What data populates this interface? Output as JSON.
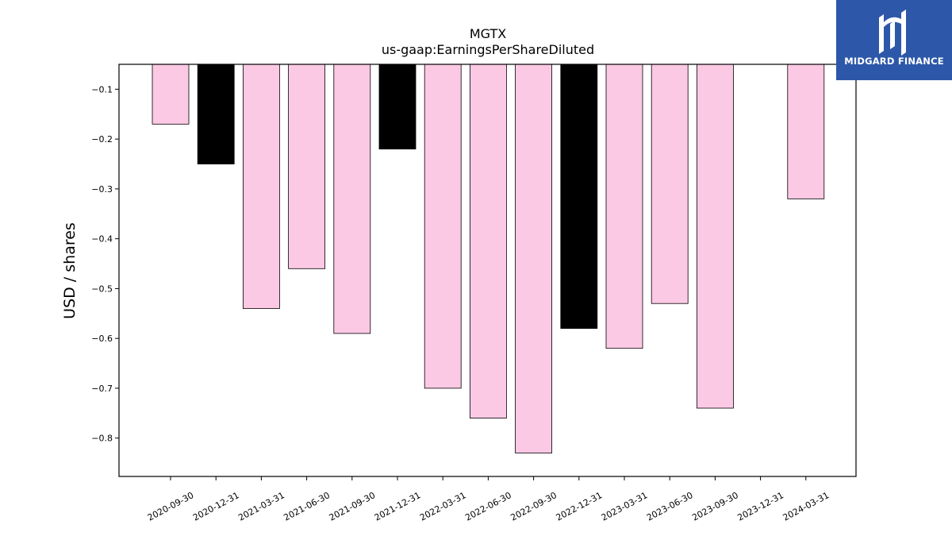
{
  "branding": {
    "logo_text": "MIDGARD FINANCE",
    "logo_bg": "#2d58a9"
  },
  "chart_data": {
    "type": "bar",
    "title": "MGTX",
    "subtitle": "us-gaap:EarningsPerShareDiluted",
    "xlabel": "",
    "ylabel": "USD / shares",
    "categories": [
      "2020-09-30",
      "2020-12-31",
      "2021-03-31",
      "2021-06-30",
      "2021-09-30",
      "2021-12-31",
      "2022-03-31",
      "2022-06-30",
      "2022-09-30",
      "2022-12-31",
      "2023-03-31",
      "2023-06-30",
      "2023-09-30",
      "2023-12-31",
      "2024-03-31"
    ],
    "values": [
      -0.17,
      -0.25,
      -0.54,
      -0.46,
      -0.59,
      -0.22,
      -0.7,
      -0.76,
      -0.83,
      -0.58,
      -0.62,
      -0.53,
      -0.74,
      null,
      -0.32
    ],
    "colors": [
      "#fcc9e5",
      "#000000",
      "#fcc9e5",
      "#fcc9e5",
      "#fcc9e5",
      "#000000",
      "#fcc9e5",
      "#fcc9e5",
      "#fcc9e5",
      "#000000",
      "#fcc9e5",
      "#fcc9e5",
      "#fcc9e5",
      "#fcc9e5",
      "#fcc9e5"
    ],
    "yticks": [
      -0.1,
      -0.2,
      -0.3,
      -0.4,
      -0.5,
      -0.6,
      -0.7,
      -0.8
    ],
    "ylim": [
      -0.877,
      -0.05
    ],
    "grid": false,
    "legend": "none"
  }
}
